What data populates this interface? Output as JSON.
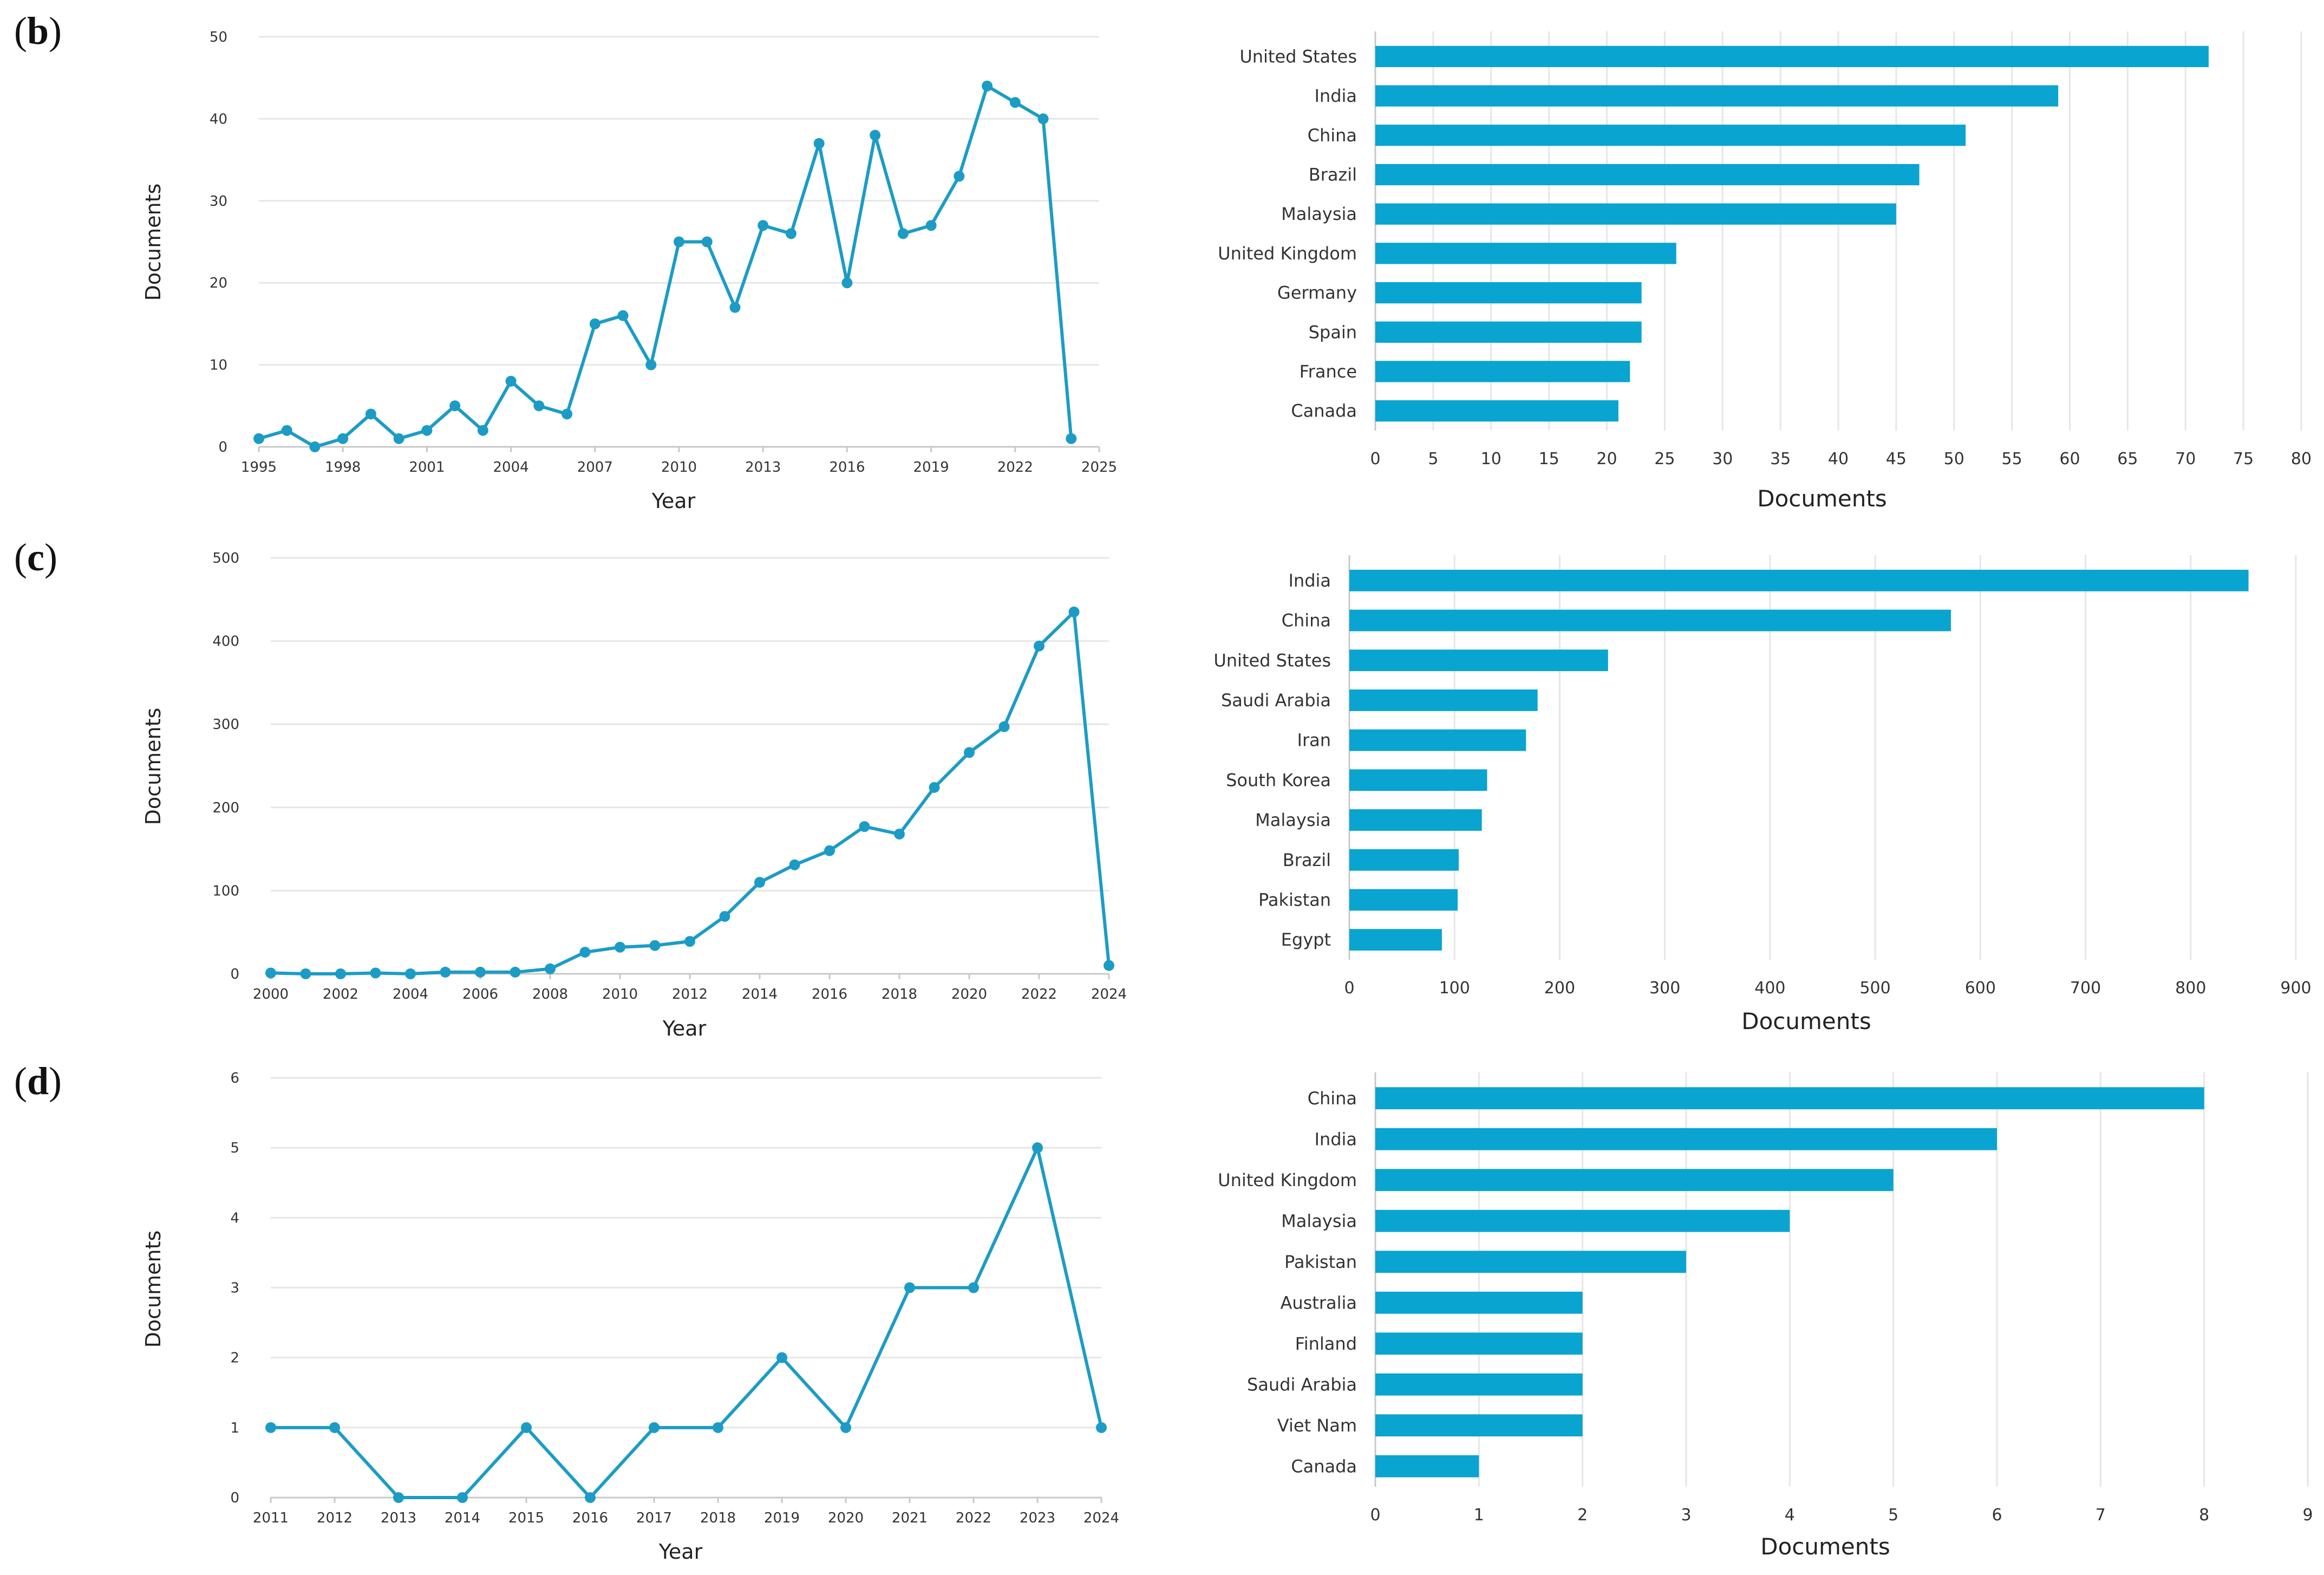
{
  "panels": [
    {
      "label_open": "(",
      "label_letter": "b",
      "label_close": ")"
    },
    {
      "label_open": "(",
      "label_letter": "c",
      "label_close": ")"
    },
    {
      "label_open": "(",
      "label_letter": "d",
      "label_close": ")"
    }
  ],
  "colors": {
    "line": "#1c9cc5",
    "bar": "#0aa4d0",
    "grid": "#e6e6e6"
  },
  "chart_data": [
    {
      "id": "b-line",
      "type": "line",
      "xlabel": "Year",
      "ylabel": "Documents",
      "x": [
        1995,
        1996,
        1997,
        1998,
        1999,
        2000,
        2001,
        2002,
        2003,
        2004,
        2005,
        2006,
        2007,
        2008,
        2009,
        2010,
        2011,
        2012,
        2013,
        2014,
        2015,
        2016,
        2017,
        2018,
        2019,
        2020,
        2021,
        2022,
        2023,
        2024
      ],
      "y": [
        1,
        2,
        0,
        1,
        4,
        1,
        2,
        5,
        2,
        8,
        5,
        4,
        15,
        16,
        10,
        25,
        25,
        17,
        27,
        26,
        37,
        20,
        38,
        26,
        27,
        33,
        44,
        42,
        40,
        1
      ],
      "xlim": [
        1995,
        2025
      ],
      "xticks": [
        1995,
        1998,
        2001,
        2004,
        2007,
        2010,
        2013,
        2016,
        2019,
        2022,
        2025
      ],
      "ylim": [
        0,
        50
      ],
      "yticks": [
        0,
        10,
        20,
        30,
        40,
        50
      ],
      "grid": "horizontal"
    },
    {
      "id": "b-bar",
      "type": "bar",
      "orientation": "horizontal",
      "xlabel": "Documents",
      "ylabel": "",
      "categories": [
        "United States",
        "India",
        "China",
        "Brazil",
        "Malaysia",
        "United Kingdom",
        "Germany",
        "Spain",
        "France",
        "Canada"
      ],
      "values": [
        72,
        59,
        51,
        47,
        45,
        26,
        23,
        23,
        22,
        21
      ],
      "xlim": [
        0,
        80
      ],
      "xticks": [
        0,
        5,
        10,
        15,
        20,
        25,
        30,
        35,
        40,
        45,
        50,
        55,
        60,
        65,
        70,
        75,
        80
      ],
      "grid": "vertical"
    },
    {
      "id": "c-line",
      "type": "line",
      "xlabel": "Year",
      "ylabel": "Documents",
      "x": [
        2000,
        2001,
        2002,
        2003,
        2004,
        2005,
        2006,
        2007,
        2008,
        2009,
        2010,
        2011,
        2012,
        2013,
        2014,
        2015,
        2016,
        2017,
        2018,
        2019,
        2020,
        2021,
        2022,
        2023,
        2024
      ],
      "y": [
        1,
        0,
        0,
        1,
        0,
        2,
        2,
        2,
        6,
        26,
        32,
        34,
        39,
        69,
        110,
        131,
        148,
        177,
        168,
        224,
        266,
        297,
        394,
        435,
        10
      ],
      "xlim": [
        2000,
        2024
      ],
      "xticks": [
        2000,
        2002,
        2004,
        2006,
        2008,
        2010,
        2012,
        2014,
        2016,
        2018,
        2020,
        2022,
        2024
      ],
      "ylim": [
        0,
        500
      ],
      "yticks": [
        0,
        100,
        200,
        300,
        400,
        500
      ],
      "grid": "horizontal"
    },
    {
      "id": "c-bar",
      "type": "bar",
      "orientation": "horizontal",
      "xlabel": "Documents",
      "ylabel": "",
      "categories": [
        "India",
        "China",
        "United States",
        "Saudi Arabia",
        "Iran",
        "South Korea",
        "Malaysia",
        "Brazil",
        "Pakistan",
        "Egypt"
      ],
      "values": [
        855,
        572,
        246,
        179,
        168,
        131,
        126,
        104,
        103,
        88
      ],
      "xlim": [
        0,
        900
      ],
      "xticks": [
        0,
        100,
        200,
        300,
        400,
        500,
        600,
        700,
        800,
        900
      ],
      "grid": "vertical"
    },
    {
      "id": "d-line",
      "type": "line",
      "xlabel": "Year",
      "ylabel": "Documents",
      "x": [
        2011,
        2012,
        2013,
        2014,
        2015,
        2016,
        2017,
        2018,
        2019,
        2020,
        2021,
        2022,
        2023,
        2024
      ],
      "y": [
        1,
        1,
        0,
        0,
        1,
        0,
        1,
        1,
        2,
        1,
        3,
        3,
        5,
        1
      ],
      "xlim": [
        2011,
        2024
      ],
      "xticks": [
        2011,
        2012,
        2013,
        2014,
        2015,
        2016,
        2017,
        2018,
        2019,
        2020,
        2021,
        2022,
        2023,
        2024
      ],
      "ylim": [
        0,
        6
      ],
      "yticks": [
        0,
        1,
        2,
        3,
        4,
        5,
        6
      ],
      "grid": "horizontal"
    },
    {
      "id": "d-bar",
      "type": "bar",
      "orientation": "horizontal",
      "xlabel": "Documents",
      "ylabel": "",
      "categories": [
        "China",
        "India",
        "United Kingdom",
        "Malaysia",
        "Pakistan",
        "Australia",
        "Finland",
        "Saudi Arabia",
        "Viet Nam",
        "Canada"
      ],
      "values": [
        8,
        6,
        5,
        4,
        3,
        2,
        2,
        2,
        2,
        1
      ],
      "xlim": [
        0,
        9
      ],
      "xticks": [
        0,
        1,
        2,
        3,
        4,
        5,
        6,
        7,
        8,
        9
      ],
      "grid": "vertical"
    }
  ]
}
